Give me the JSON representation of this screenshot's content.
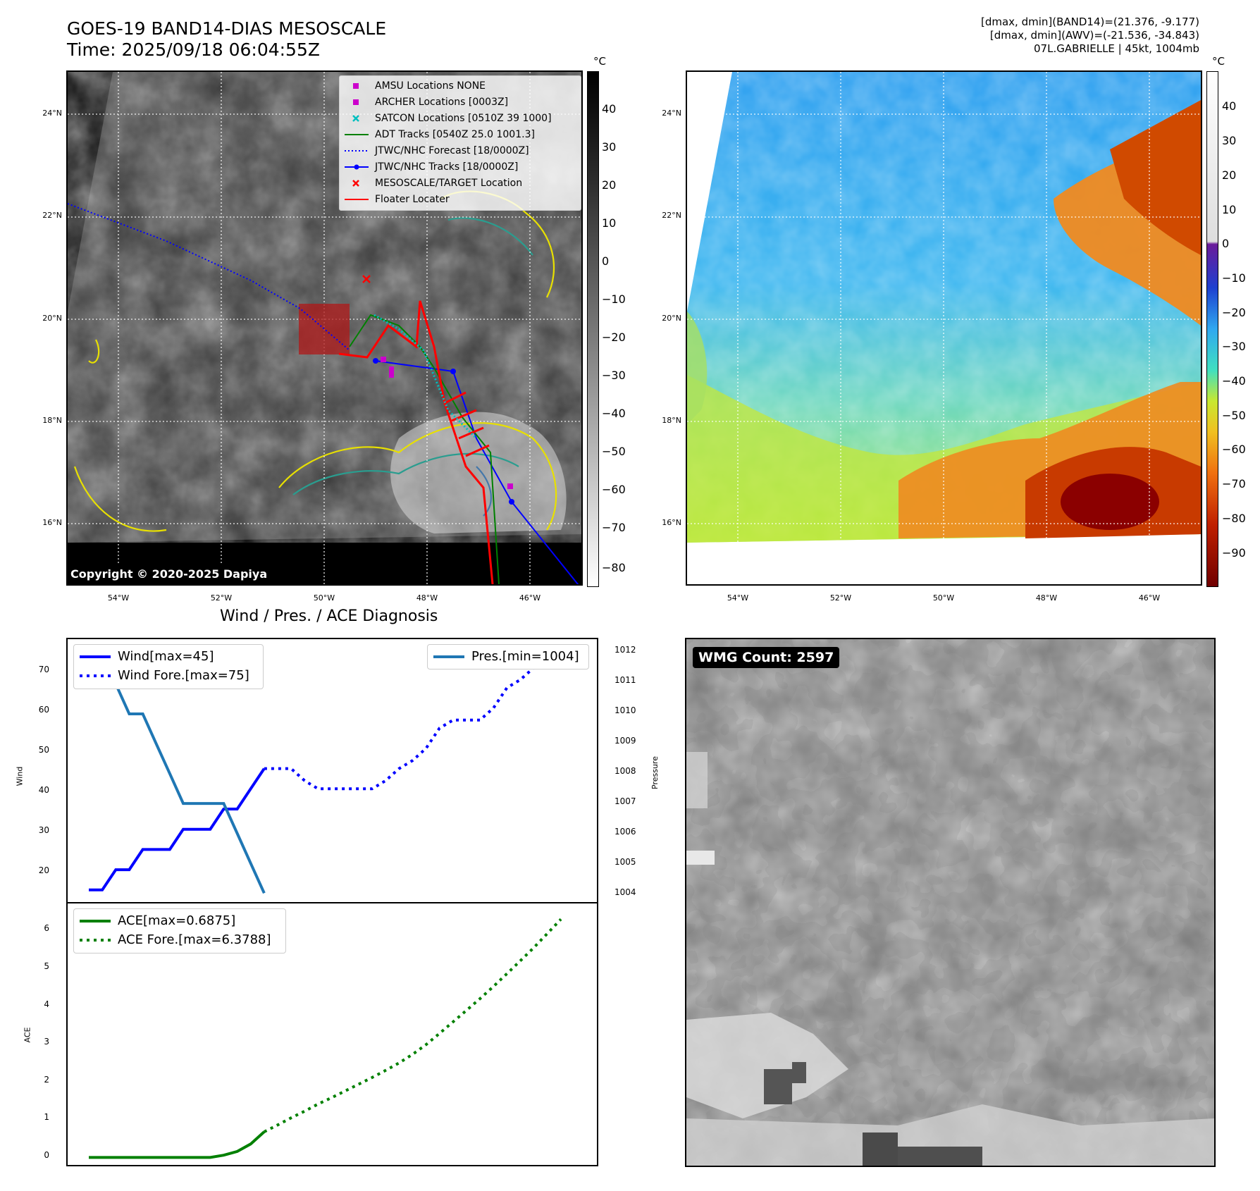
{
  "header": {
    "title_line1": "GOES-19 BAND14-DIAS MESOSCALE",
    "title_line2": "Time: 2025/09/18 06:04:55Z",
    "info_line1": "[dmax, dmin](BAND14)=(21.376, -9.177)",
    "info_line2": "[dmax, dmin](AWV)=(-21.536, -34.843)",
    "info_line3": "07L.GABRIELLE | 45kt, 1004mb"
  },
  "map": {
    "lat_labels": [
      "24°N",
      "22°N",
      "20°N",
      "18°N",
      "16°N"
    ],
    "lon_labels": [
      "54°W",
      "52°W",
      "50°W",
      "48°W",
      "46°W"
    ],
    "copyright": "Copyright © 2020-2025 Dapiya",
    "legend": [
      {
        "label": "AMSU Locations NONE",
        "color": "#cc00cc",
        "marker": "square"
      },
      {
        "label": "ARCHER Locations [0003Z]",
        "color": "#cc00cc",
        "marker": "square"
      },
      {
        "label": "SATCON Locations [0510Z 39 1000]",
        "color": "#00bfbf",
        "marker": "x"
      },
      {
        "label": "ADT Tracks [0540Z 25.0 1001.3]",
        "color": "#008000",
        "marker": "line"
      },
      {
        "label": "JTWC/NHC Forecast [18/0000Z]",
        "color": "#0000ff",
        "marker": "dotted"
      },
      {
        "label": "JTWC/NHC Tracks [18/0000Z]",
        "color": "#0000ff",
        "marker": "line-dot"
      },
      {
        "label": "MESOSCALE/TARGET Location",
        "color": "#ff0000",
        "marker": "x"
      },
      {
        "label": "Floater Locater",
        "color": "#ff0000",
        "marker": "line"
      }
    ],
    "left_colorbar": {
      "unit": "°C",
      "ticks": [
        "40",
        "30",
        "20",
        "10",
        "0",
        "−10",
        "−20",
        "−30",
        "−40",
        "−50",
        "−60",
        "−70",
        "−80"
      ]
    },
    "right_colorbar": {
      "unit": "°C",
      "ticks": [
        "40",
        "30",
        "20",
        "10",
        "0",
        "−10",
        "−20",
        "−30",
        "−40",
        "−50",
        "−60",
        "−70",
        "−80",
        "−90"
      ]
    },
    "colors": {
      "jtwc": "#0000ff",
      "adt": "#008000",
      "floater": "#ff0000",
      "archer": "#cc00cc",
      "satcon": "#00bfbf"
    }
  },
  "diag": {
    "title": "Wind / Pres. / ACE Diagnosis",
    "wind_ylabel": "Wind",
    "pres_ylabel": "Pressure",
    "ace_ylabel": "ACE",
    "wind_ticks": [
      "70",
      "60",
      "50",
      "40",
      "30",
      "20"
    ],
    "pres_ticks": [
      "1012",
      "1011",
      "1010",
      "1009",
      "1008",
      "1007",
      "1006",
      "1005",
      "1004"
    ],
    "ace_ticks": [
      "6",
      "5",
      "4",
      "3",
      "2",
      "1",
      "0"
    ],
    "legend_wind": "Wind[max=45]",
    "legend_wind_fore": "Wind Fore.[max=75]",
    "legend_pres": "Pres.[min=1004]",
    "legend_ace": "ACE[max=0.6875]",
    "legend_ace_fore": "ACE Fore.[max=6.3788]"
  },
  "wmg": {
    "label": "WMG Count: 2597"
  },
  "chart_data": [
    {
      "type": "line",
      "title": "Wind / Pres. / ACE Diagnosis",
      "ylabel": "Wind",
      "ylim": [
        12,
        77
      ],
      "series": [
        {
          "name": "Wind[max=45]",
          "color": "#0000ff",
          "style": "solid",
          "x": [
            0,
            1,
            2,
            3,
            4,
            5,
            6,
            7,
            8,
            9,
            10,
            11,
            12,
            13
          ],
          "values": [
            15,
            15,
            20,
            20,
            25,
            25,
            25,
            30,
            30,
            30,
            35,
            35,
            40,
            45
          ]
        },
        {
          "name": "Wind Fore.[max=75]",
          "color": "#0000ff",
          "style": "dotted",
          "x": [
            13,
            14,
            15,
            16,
            17,
            18,
            19,
            20,
            21,
            22,
            23,
            24,
            25,
            26,
            27,
            28,
            29,
            30,
            31,
            32,
            33,
            34,
            35
          ],
          "values": [
            45,
            45,
            45,
            42,
            40,
            40,
            40,
            40,
            40,
            42,
            45,
            47,
            50,
            55,
            57,
            57,
            57,
            60,
            65,
            67,
            70,
            72,
            75
          ]
        },
        {
          "name": "Pres.[min=1004]",
          "color": "#1f77b4",
          "style": "solid",
          "axis": "right",
          "ylim": [
            1003.7,
            1012.5
          ],
          "x": [
            0,
            1,
            2,
            3,
            4,
            5,
            6,
            7,
            8,
            9,
            10,
            11,
            12,
            13
          ],
          "values": [
            1012,
            1011,
            1011,
            1010,
            1010,
            1009,
            1008,
            1007,
            1007,
            1007,
            1007,
            1006,
            1005,
            1004
          ]
        }
      ],
      "right_ylabel": "Pressure"
    },
    {
      "type": "line",
      "ylabel": "ACE",
      "ylim": [
        -0.2,
        6.8
      ],
      "series": [
        {
          "name": "ACE[max=0.6875]",
          "color": "#008000",
          "style": "solid",
          "x": [
            0,
            1,
            2,
            3,
            4,
            5,
            6,
            7,
            8,
            9,
            10,
            11,
            12,
            13
          ],
          "values": [
            0,
            0,
            0,
            0,
            0,
            0,
            0,
            0,
            0,
            0,
            0.06,
            0.16,
            0.36,
            0.6875
          ]
        },
        {
          "name": "ACE Fore.[max=6.3788]",
          "color": "#008000",
          "style": "dotted",
          "x": [
            13,
            14,
            15,
            16,
            17,
            18,
            19,
            20,
            21,
            22,
            23,
            24,
            25,
            26,
            27,
            28,
            29,
            30,
            31,
            32,
            33,
            34,
            35
          ],
          "values": [
            0.6875,
            0.87,
            1.06,
            1.24,
            1.43,
            1.6,
            1.78,
            1.96,
            2.14,
            2.33,
            2.53,
            2.76,
            3.02,
            3.32,
            3.63,
            3.94,
            4.25,
            4.58,
            4.92,
            5.27,
            5.62,
            6.0,
            6.3788
          ]
        }
      ]
    }
  ]
}
